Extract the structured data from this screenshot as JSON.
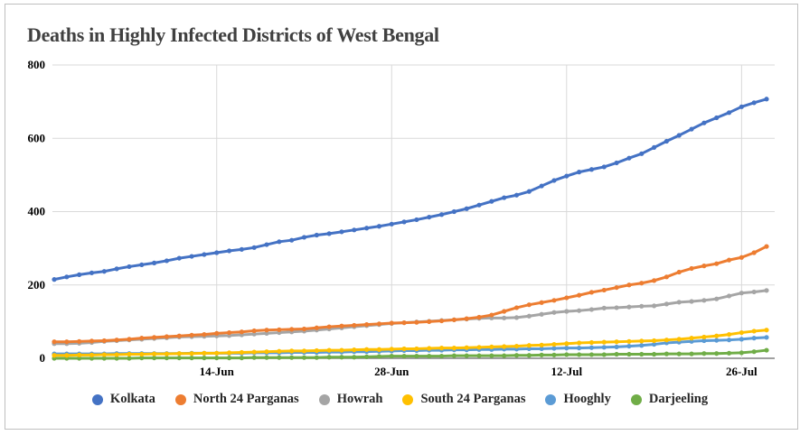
{
  "chart_data": {
    "type": "line",
    "title": "Deaths in Highly Infected Districts of West Bengal",
    "xlabel": "",
    "ylabel": "",
    "ylim": [
      0,
      800
    ],
    "yticks": [
      "0",
      "200",
      "400",
      "600",
      "800"
    ],
    "xtick_labels": [
      "14-Jun",
      "28-Jun",
      "12-Jul",
      "26-Jul"
    ],
    "grid": true,
    "legend_position": "bottom",
    "x": [
      "1-Jun",
      "2-Jun",
      "3-Jun",
      "4-Jun",
      "5-Jun",
      "6-Jun",
      "7-Jun",
      "8-Jun",
      "9-Jun",
      "10-Jun",
      "11-Jun",
      "12-Jun",
      "13-Jun",
      "14-Jun",
      "15-Jun",
      "16-Jun",
      "17-Jun",
      "18-Jun",
      "19-Jun",
      "20-Jun",
      "21-Jun",
      "22-Jun",
      "23-Jun",
      "24-Jun",
      "25-Jun",
      "26-Jun",
      "27-Jun",
      "28-Jun",
      "29-Jun",
      "30-Jun",
      "1-Jul",
      "2-Jul",
      "3-Jul",
      "4-Jul",
      "5-Jul",
      "6-Jul",
      "7-Jul",
      "8-Jul",
      "9-Jul",
      "10-Jul",
      "11-Jul",
      "12-Jul",
      "13-Jul",
      "14-Jul",
      "15-Jul",
      "16-Jul",
      "17-Jul",
      "18-Jul",
      "19-Jul",
      "20-Jul",
      "21-Jul",
      "22-Jul",
      "23-Jul",
      "24-Jul",
      "25-Jul",
      "26-Jul",
      "27-Jul",
      "28-Jul"
    ],
    "series": [
      {
        "name": "Kolkata",
        "color": "#4472C4",
        "values": [
          215,
          222,
          228,
          233,
          237,
          244,
          250,
          255,
          260,
          266,
          273,
          278,
          283,
          288,
          293,
          297,
          302,
          310,
          318,
          322,
          330,
          336,
          340,
          345,
          350,
          355,
          360,
          366,
          372,
          378,
          385,
          392,
          400,
          408,
          418,
          428,
          438,
          445,
          455,
          470,
          485,
          497,
          508,
          515,
          522,
          533,
          546,
          558,
          575,
          592,
          608,
          625,
          642,
          656,
          670,
          686,
          697,
          707
        ]
      },
      {
        "name": "North 24 Parganas",
        "color": "#ED7D31",
        "values": [
          45,
          45,
          46,
          47,
          48,
          50,
          52,
          55,
          57,
          59,
          61,
          63,
          65,
          68,
          70,
          72,
          75,
          77,
          78,
          79,
          80,
          83,
          86,
          88,
          90,
          92,
          94,
          96,
          97,
          98,
          100,
          102,
          105,
          108,
          112,
          118,
          128,
          138,
          146,
          152,
          158,
          165,
          172,
          180,
          186,
          193,
          200,
          205,
          212,
          222,
          235,
          245,
          252,
          258,
          268,
          275,
          288,
          305
        ]
      },
      {
        "name": "Howrah",
        "color": "#A5A5A5",
        "values": [
          40,
          40,
          41,
          43,
          46,
          48,
          50,
          52,
          54,
          56,
          58,
          59,
          60,
          61,
          62,
          64,
          66,
          68,
          70,
          72,
          74,
          77,
          80,
          83,
          86,
          89,
          92,
          95,
          97,
          99,
          101,
          103,
          105,
          107,
          109,
          110,
          110,
          111,
          115,
          120,
          125,
          128,
          130,
          133,
          137,
          138,
          140,
          142,
          143,
          148,
          153,
          155,
          158,
          162,
          170,
          178,
          181,
          185
        ]
      },
      {
        "name": "South 24 Parganas",
        "color": "#FFC000",
        "values": [
          8,
          8,
          9,
          9,
          10,
          10,
          11,
          11,
          12,
          12,
          13,
          13,
          14,
          14,
          15,
          16,
          17,
          18,
          19,
          20,
          20,
          21,
          22,
          22,
          23,
          24,
          24,
          25,
          26,
          26,
          27,
          28,
          28,
          29,
          30,
          31,
          32,
          33,
          35,
          36,
          38,
          40,
          42,
          43,
          44,
          45,
          46,
          47,
          48,
          50,
          52,
          55,
          58,
          61,
          65,
          70,
          74,
          77
        ]
      },
      {
        "name": "Hooghly",
        "color": "#5B9BD5",
        "values": [
          12,
          12,
          12,
          12,
          12,
          13,
          13,
          13,
          13,
          13,
          13,
          14,
          14,
          14,
          14,
          14,
          15,
          15,
          15,
          16,
          16,
          16,
          17,
          17,
          18,
          18,
          19,
          20,
          21,
          21,
          22,
          22,
          23,
          23,
          24,
          24,
          25,
          25,
          26,
          26,
          27,
          28,
          28,
          29,
          30,
          31,
          33,
          35,
          38,
          42,
          44,
          46,
          48,
          49,
          50,
          52,
          55,
          57
        ]
      },
      {
        "name": "Darjeeling",
        "color": "#70AD47",
        "values": [
          0,
          0,
          0,
          0,
          0,
          0,
          0,
          1,
          1,
          1,
          1,
          1,
          1,
          1,
          1,
          1,
          2,
          2,
          2,
          2,
          2,
          2,
          3,
          3,
          3,
          4,
          5,
          6,
          6,
          6,
          6,
          6,
          7,
          7,
          7,
          7,
          7,
          8,
          8,
          9,
          9,
          10,
          10,
          10,
          10,
          11,
          11,
          11,
          11,
          12,
          12,
          12,
          13,
          13,
          14,
          15,
          18,
          22
        ]
      }
    ]
  }
}
